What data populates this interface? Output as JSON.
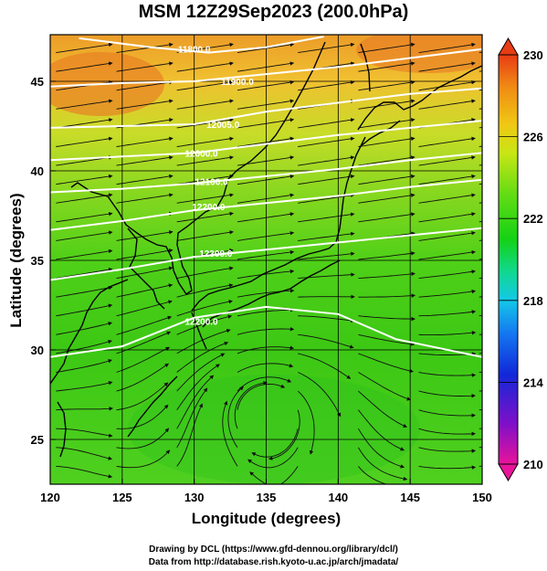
{
  "title": "MSM 12Z29Sep2023 (200.0hPa)",
  "xlabel": "Longitude (degrees)",
  "ylabel": "Latitude  (degrees)",
  "credit_line1": "Drawing by DCL (https://www.gfd-dennou.org/library/dcl/)",
  "credit_line2": "Data from http://database.rish.kyoto-u.ac.jp/arch/jmadata/",
  "map": {
    "lon_range": [
      120,
      150
    ],
    "lat_range": [
      22.5,
      47.6
    ],
    "lon_ticks": [
      "120",
      "125",
      "130",
      "135",
      "140",
      "145",
      "150"
    ],
    "lat_ticks": [
      "25",
      "30",
      "35",
      "40",
      "45"
    ],
    "contour_labels": [
      {
        "text": "12200.0",
        "lon": 130.5,
        "lat": 31.4
      },
      {
        "text": "12300.0",
        "lon": 131.5,
        "lat": 35.2
      },
      {
        "text": "12200.0",
        "lon": 131.0,
        "lat": 37.8
      },
      {
        "text": "12100.0",
        "lon": 131.2,
        "lat": 39.2
      },
      {
        "text": "12000.0",
        "lon": 130.5,
        "lat": 40.8
      },
      {
        "text": "12005.0",
        "lon": 132.0,
        "lat": 42.4
      },
      {
        "text": "11900.0",
        "lon": 133.0,
        "lat": 44.8
      },
      {
        "text": "11800.0",
        "lon": 130.0,
        "lat": 46.6
      }
    ],
    "contour_lines": [
      [
        [
          120,
          29.6
        ],
        [
          125,
          30.2
        ],
        [
          130,
          31.8
        ],
        [
          135,
          32.4
        ],
        [
          140,
          32.0
        ],
        [
          144,
          30.6
        ],
        [
          150,
          29.6
        ]
      ],
      [
        [
          120,
          33.9
        ],
        [
          125,
          34.5
        ],
        [
          130,
          35.2
        ],
        [
          135,
          35.6
        ],
        [
          140,
          36.0
        ],
        [
          145,
          36.4
        ],
        [
          150,
          36.8
        ]
      ],
      [
        [
          120,
          36.7
        ],
        [
          125,
          37.2
        ],
        [
          130,
          37.8
        ],
        [
          135,
          38.2
        ],
        [
          140,
          38.6
        ],
        [
          145,
          39.1
        ],
        [
          150,
          39.5
        ]
      ],
      [
        [
          120,
          38.8
        ],
        [
          125,
          39.0
        ],
        [
          130,
          39.3
        ],
        [
          135,
          39.7
        ],
        [
          140,
          40.1
        ],
        [
          145,
          40.6
        ],
        [
          150,
          41.0
        ]
      ],
      [
        [
          120,
          40.6
        ],
        [
          125,
          40.8
        ],
        [
          130,
          41.0
        ],
        [
          135,
          41.5
        ],
        [
          140,
          42.0
        ],
        [
          145,
          42.4
        ],
        [
          150,
          42.8
        ]
      ],
      [
        [
          120,
          42.4
        ],
        [
          125,
          42.5
        ],
        [
          130,
          42.6
        ],
        [
          135,
          43.3
        ],
        [
          140,
          43.8
        ],
        [
          145,
          44.3
        ],
        [
          150,
          44.6
        ]
      ],
      [
        [
          120,
          44.7
        ],
        [
          125,
          44.9
        ],
        [
          130,
          45.0
        ],
        [
          135,
          45.4
        ],
        [
          140,
          45.8
        ],
        [
          145,
          46.3
        ],
        [
          150,
          46.8
        ]
      ],
      [
        [
          122,
          47.4
        ],
        [
          127,
          46.9
        ],
        [
          131,
          46.6
        ],
        [
          135,
          46.9
        ],
        [
          139,
          47.5
        ]
      ]
    ]
  },
  "colorbar": {
    "min": 210,
    "max": 230,
    "tick_labels": [
      "230",
      "226",
      "222",
      "218",
      "214",
      "210"
    ],
    "colors": [
      "#e8149a",
      "#7d10c8",
      "#1228d8",
      "#1478f0",
      "#14c8e8",
      "#10d890",
      "#14d214",
      "#64dc14",
      "#c8e614",
      "#f0c814",
      "#f08c14",
      "#e83c14"
    ]
  }
}
